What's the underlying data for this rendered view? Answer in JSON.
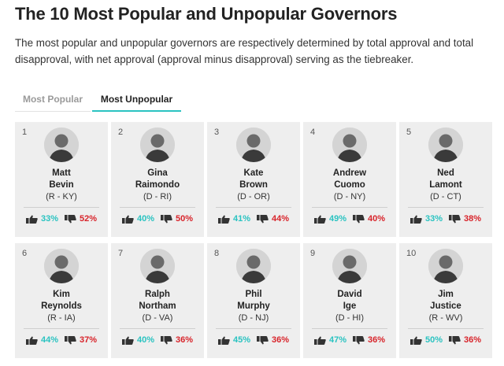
{
  "header": {
    "title": "The 10 Most Popular and Unpopular Governors",
    "subtitle": "The most popular and unpopular governors are respectively determined by total approval and total disapproval, with net approval (approval minus disapproval) serving as the tiebreaker."
  },
  "tabs": [
    {
      "label": "Most Popular",
      "active": false
    },
    {
      "label": "Most Unpopular",
      "active": true
    }
  ],
  "colors": {
    "approve": "#2ac3c1",
    "disapprove": "#d8232a",
    "accent": "#2ac3c1"
  },
  "governors": [
    {
      "rank": "1",
      "first": "Matt",
      "last": "Bevin",
      "party": "(R - KY)",
      "approve": "33%",
      "disapprove": "52%"
    },
    {
      "rank": "2",
      "first": "Gina",
      "last": "Raimondo",
      "party": "(D - RI)",
      "approve": "40%",
      "disapprove": "50%"
    },
    {
      "rank": "3",
      "first": "Kate",
      "last": "Brown",
      "party": "(D - OR)",
      "approve": "41%",
      "disapprove": "44%"
    },
    {
      "rank": "4",
      "first": "Andrew",
      "last": "Cuomo",
      "party": "(D - NY)",
      "approve": "49%",
      "disapprove": "40%"
    },
    {
      "rank": "5",
      "first": "Ned",
      "last": "Lamont",
      "party": "(D - CT)",
      "approve": "33%",
      "disapprove": "38%"
    },
    {
      "rank": "6",
      "first": "Kim",
      "last": "Reynolds",
      "party": "(R - IA)",
      "approve": "44%",
      "disapprove": "37%"
    },
    {
      "rank": "7",
      "first": "Ralph",
      "last": "Northam",
      "party": "(D - VA)",
      "approve": "40%",
      "disapprove": "36%"
    },
    {
      "rank": "8",
      "first": "Phil",
      "last": "Murphy",
      "party": "(D - NJ)",
      "approve": "45%",
      "disapprove": "36%"
    },
    {
      "rank": "9",
      "first": "David",
      "last": "Ige",
      "party": "(D - HI)",
      "approve": "47%",
      "disapprove": "36%"
    },
    {
      "rank": "10",
      "first": "Jim",
      "last": "Justice",
      "party": "(R - WV)",
      "approve": "50%",
      "disapprove": "36%"
    }
  ]
}
